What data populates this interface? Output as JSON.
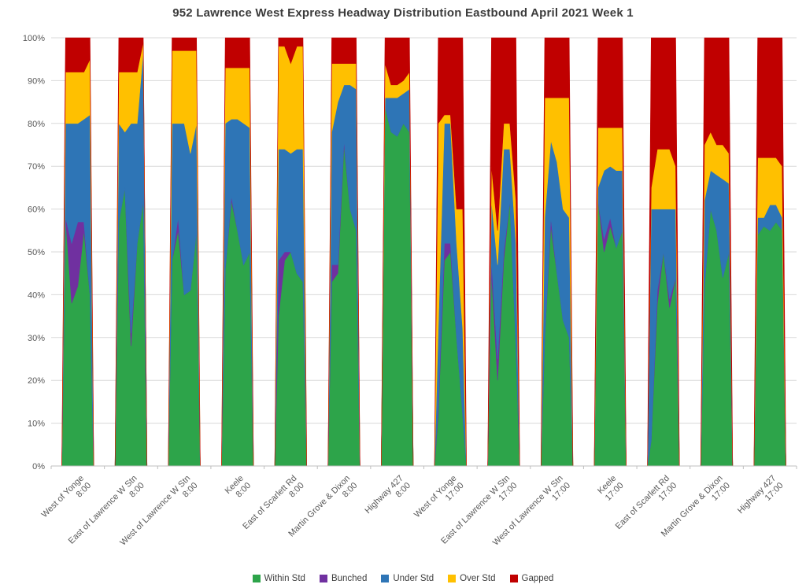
{
  "title": "952 Lawrence West Express  Headway Distribution Eastbound April 2021 Week 1",
  "chart_data": {
    "type": "area",
    "subtype": "stacked-100-percent",
    "title": "952 Lawrence West Express  Headway Distribution Eastbound April 2021 Week 1",
    "xlabel": "",
    "ylabel": "",
    "ylim": [
      0,
      100
    ],
    "yticks": [
      0,
      10,
      20,
      30,
      40,
      50,
      60,
      70,
      80,
      90,
      100
    ],
    "ytick_suffix": "%",
    "grid": true,
    "legend_position": "bottom",
    "colors": {
      "grid": "#d9d9d9",
      "axis_line": "#bfbfbf",
      "tick_text": "#595959",
      "title_text": "#3b3b3b"
    },
    "series": [
      {
        "name": "Within Std",
        "color": "#2da44a"
      },
      {
        "name": "Bunched",
        "color": "#7030a0"
      },
      {
        "name": "Under Std",
        "color": "#2e75b6"
      },
      {
        "name": "Over Std",
        "color": "#ffc000"
      },
      {
        "name": "Gapped",
        "color": "#c00000"
      }
    ],
    "value_order": [
      "Within Std",
      "Bunched",
      "Under Std",
      "Over Std",
      "Gapped"
    ],
    "groups": [
      {
        "label": "West of Yonge",
        "time": "8:00",
        "points": [
          [
            58,
            0,
            22,
            12,
            8
          ],
          [
            38,
            14,
            28,
            12,
            8
          ],
          [
            42,
            15,
            23,
            12,
            8
          ],
          [
            55,
            2,
            24,
            11,
            8
          ],
          [
            40,
            0,
            42,
            13,
            5
          ]
        ]
      },
      {
        "label": "East of Lawrence W Stn",
        "time": "8:00",
        "points": [
          [
            57,
            0,
            23,
            12,
            8
          ],
          [
            65,
            0,
            13,
            14,
            8
          ],
          [
            28,
            3,
            49,
            12,
            8
          ],
          [
            52,
            0,
            28,
            12,
            8
          ],
          [
            62,
            0,
            35,
            2,
            1
          ]
        ]
      },
      {
        "label": "West of Lawrence W Stn",
        "time": "8:00",
        "points": [
          [
            48,
            0,
            32,
            17,
            3
          ],
          [
            55,
            3,
            22,
            17,
            3
          ],
          [
            40,
            0,
            40,
            17,
            3
          ],
          [
            41,
            0,
            32,
            24,
            3
          ],
          [
            55,
            0,
            25,
            17,
            3
          ]
        ]
      },
      {
        "label": "Keele",
        "time": "8:00",
        "points": [
          [
            46,
            0,
            34,
            13,
            7
          ],
          [
            62,
            1,
            18,
            12,
            7
          ],
          [
            55,
            0,
            26,
            12,
            7
          ],
          [
            47,
            0,
            33,
            13,
            7
          ],
          [
            50,
            0,
            29,
            14,
            7
          ]
        ]
      },
      {
        "label": "East of Scarlett Rd",
        "time": "8:00",
        "points": [
          [
            35,
            13,
            26,
            24,
            2
          ],
          [
            48,
            2,
            24,
            24,
            2
          ],
          [
            50,
            0,
            23,
            21,
            6
          ],
          [
            45,
            0,
            29,
            24,
            2
          ],
          [
            43,
            0,
            31,
            24,
            2
          ]
        ]
      },
      {
        "label": "Martin Grove & Dixon",
        "time": "8:00",
        "points": [
          [
            43,
            4,
            31,
            16,
            6
          ],
          [
            45,
            2,
            38,
            9,
            6
          ],
          [
            75,
            1,
            13,
            5,
            6
          ],
          [
            60,
            0,
            29,
            5,
            6
          ],
          [
            55,
            0,
            33,
            6,
            6
          ]
        ]
      },
      {
        "label": "Highway 427",
        "time": "8:00",
        "points": [
          [
            84,
            0,
            2,
            8,
            6
          ],
          [
            78,
            0,
            8,
            3,
            11
          ],
          [
            77,
            0,
            9,
            3,
            11
          ],
          [
            80,
            0,
            7,
            3,
            10
          ],
          [
            78,
            0,
            10,
            4,
            8
          ]
        ]
      },
      {
        "label": "West of Yonge",
        "time": "17:00",
        "points": [
          [
            12,
            2,
            18,
            48,
            20
          ],
          [
            48,
            4,
            28,
            2,
            18
          ],
          [
            50,
            2,
            28,
            2,
            18
          ],
          [
            30,
            0,
            22,
            8,
            40
          ],
          [
            12,
            0,
            20,
            28,
            40
          ]
        ]
      },
      {
        "label": "East of Lawrence W Stn",
        "time": "17:00",
        "points": [
          [
            45,
            3,
            14,
            8,
            30
          ],
          [
            20,
            5,
            22,
            8,
            45
          ],
          [
            48,
            2,
            24,
            6,
            20
          ],
          [
            62,
            0,
            12,
            6,
            20
          ],
          [
            28,
            0,
            24,
            10,
            38
          ]
        ]
      },
      {
        "label": "West of Lawrence W Stn",
        "time": "17:00",
        "points": [
          [
            30,
            0,
            28,
            28,
            14
          ],
          [
            56,
            2,
            18,
            10,
            14
          ],
          [
            45,
            0,
            26,
            15,
            14
          ],
          [
            34,
            0,
            26,
            26,
            14
          ],
          [
            30,
            0,
            28,
            28,
            14
          ]
        ]
      },
      {
        "label": "Keele",
        "time": "17:00",
        "points": [
          [
            62,
            0,
            3,
            14,
            21
          ],
          [
            50,
            3,
            16,
            10,
            21
          ],
          [
            56,
            2,
            12,
            9,
            21
          ],
          [
            51,
            0,
            18,
            10,
            21
          ],
          [
            55,
            0,
            14,
            10,
            21
          ]
        ]
      },
      {
        "label": "East of Scarlett Rd",
        "time": "17:00",
        "points": [
          [
            6,
            0,
            54,
            5,
            35
          ],
          [
            38,
            3,
            19,
            14,
            26
          ],
          [
            50,
            0,
            10,
            14,
            26
          ],
          [
            37,
            2,
            21,
            14,
            26
          ],
          [
            44,
            0,
            16,
            10,
            30
          ]
        ]
      },
      {
        "label": "Martin Grove & Dixon",
        "time": "17:00",
        "points": [
          [
            42,
            0,
            20,
            13,
            25
          ],
          [
            60,
            0,
            9,
            9,
            22
          ],
          [
            55,
            0,
            13,
            7,
            25
          ],
          [
            44,
            0,
            23,
            8,
            25
          ],
          [
            50,
            0,
            16,
            7,
            27
          ]
        ]
      },
      {
        "label": "Highway 427",
        "time": "17:00",
        "points": [
          [
            54,
            0,
            4,
            14,
            28
          ],
          [
            56,
            0,
            2,
            14,
            28
          ],
          [
            55,
            0,
            6,
            11,
            28
          ],
          [
            57,
            0,
            4,
            11,
            28
          ],
          [
            55,
            0,
            3,
            12,
            30
          ]
        ]
      }
    ]
  }
}
